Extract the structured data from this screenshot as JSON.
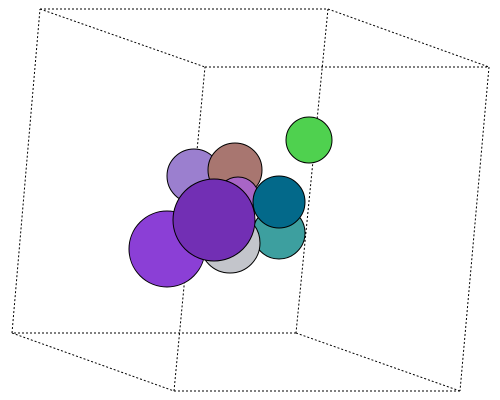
{
  "scene": {
    "type": "3d-sphere-cluster",
    "box": {
      "edge_style": "dashed",
      "edge_color": "#000000"
    },
    "spheres": [
      {
        "name": "sphere-lavender",
        "color": "#9b7fcf"
      },
      {
        "name": "sphere-rose-brown",
        "color": "#a87670"
      },
      {
        "name": "sphere-light-green",
        "color": "#4fd14f"
      },
      {
        "name": "sphere-orchid",
        "color": "#a865c6"
      },
      {
        "name": "sphere-teal",
        "color": "#3d9f9f"
      },
      {
        "name": "sphere-silver",
        "color": "#c3c5cb"
      },
      {
        "name": "sphere-purple",
        "color": "#8b3fd6"
      },
      {
        "name": "sphere-petrol-blue",
        "color": "#03698a"
      },
      {
        "name": "sphere-indigo",
        "color": "#722fb4"
      }
    ]
  }
}
